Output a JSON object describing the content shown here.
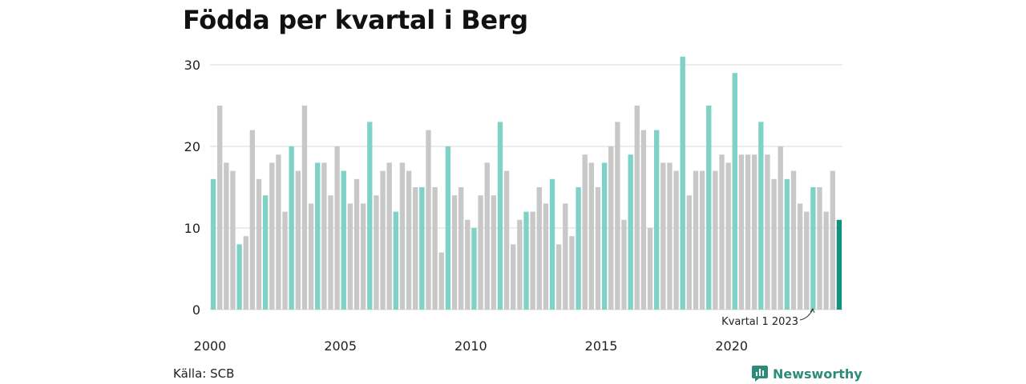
{
  "chart_data": {
    "type": "bar",
    "title": "Födda per kvartal i Berg",
    "xlabel": "",
    "ylabel": "",
    "ylim": [
      0,
      30
    ],
    "y_ticks": [
      "0",
      "10",
      "20",
      "30"
    ],
    "x_ticks": [
      {
        "year": 2000,
        "label": "2000"
      },
      {
        "year": 2005,
        "label": "2005"
      },
      {
        "year": 2010,
        "label": "2010"
      },
      {
        "year": 2015,
        "label": "2015"
      },
      {
        "year": 2020,
        "label": "2020"
      }
    ],
    "start_year": 2000,
    "grid": true,
    "colors": {
      "q1": "#7fd3c6",
      "other": "#c8c8c8",
      "latest": "#14907f"
    },
    "values": [
      16,
      25,
      18,
      17,
      8,
      9,
      22,
      16,
      14,
      18,
      19,
      12,
      20,
      17,
      25,
      13,
      18,
      18,
      14,
      20,
      17,
      13,
      16,
      13,
      23,
      14,
      17,
      18,
      12,
      18,
      17,
      15,
      15,
      22,
      15,
      7,
      20,
      14,
      15,
      11,
      10,
      14,
      18,
      14,
      23,
      17,
      8,
      11,
      12,
      12,
      15,
      13,
      16,
      8,
      13,
      9,
      15,
      19,
      18,
      15,
      18,
      20,
      23,
      11,
      19,
      25,
      22,
      10,
      22,
      18,
      18,
      17,
      31,
      14,
      17,
      17,
      25,
      17,
      19,
      18,
      29,
      19,
      19,
      19,
      23,
      19,
      16,
      20,
      16,
      17,
      13,
      12,
      15,
      15,
      12,
      17,
      11
    ],
    "annotation": "Kvartal 1 2023"
  },
  "source": "Källa: SCB",
  "brand": {
    "name": "Newsworthy",
    "icon": "bar-chart-logo-icon",
    "color": "#2e8b7a"
  }
}
